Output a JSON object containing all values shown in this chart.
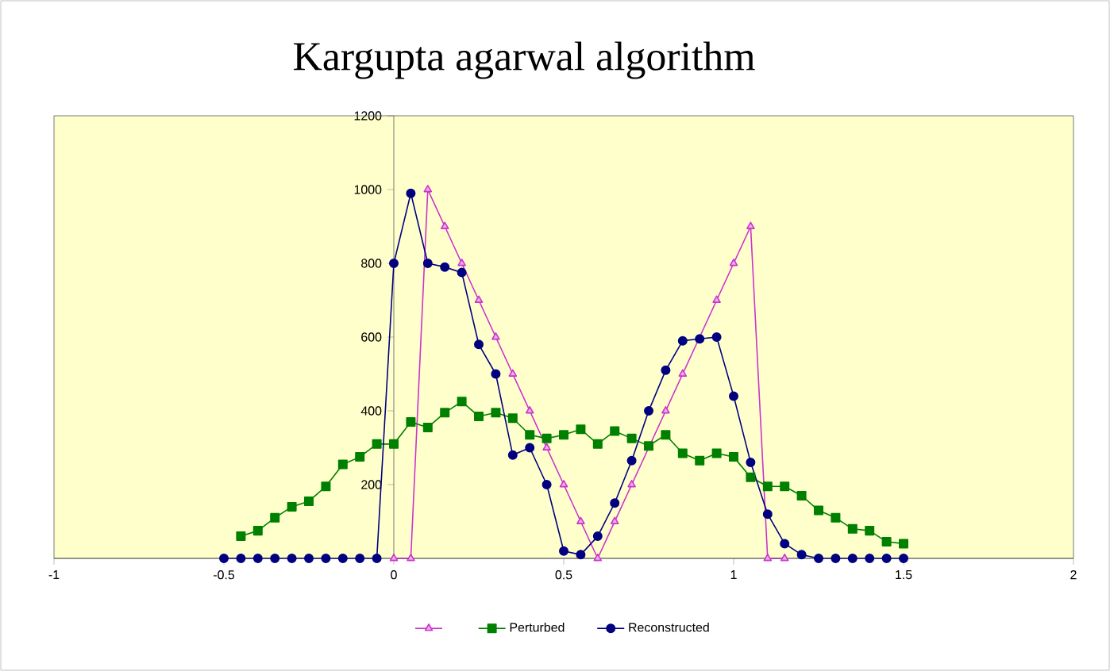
{
  "chart_data": {
    "type": "line",
    "title": "Kargupta agarwal algorithm",
    "xlim": [
      -1,
      2
    ],
    "xticks": [
      -1,
      -0.5,
      0,
      0.5,
      1,
      1.5,
      2
    ],
    "ylim": [
      0,
      1200
    ],
    "yticks": [
      {
        "value": 0,
        "label": null
      },
      200,
      400,
      600,
      800,
      1000,
      1200
    ],
    "grid": false,
    "legend": "bottom",
    "series": [
      {
        "color": "#cc33cc",
        "marker": "triangle",
        "x": [
          0,
          0.05,
          0.1,
          0.15,
          0.2,
          0.25,
          0.3,
          0.35,
          0.4,
          0.45,
          0.5,
          0.55,
          0.6,
          0.65,
          0.7,
          0.75,
          0.8,
          0.85,
          0.9,
          0.95,
          1.0,
          1.05,
          1.1,
          1.15
        ],
        "values": [
          0,
          0,
          1000,
          900,
          800,
          700,
          600,
          500,
          400,
          300,
          200,
          100,
          0,
          100,
          200,
          300,
          400,
          500,
          null,
          700,
          800,
          900,
          0,
          0
        ]
      },
      {
        "name": "Perturbed",
        "color": "#008000",
        "marker": "square",
        "x": [
          -0.45,
          -0.4,
          -0.35,
          -0.3,
          -0.25,
          -0.2,
          -0.15,
          -0.1,
          -0.05,
          0,
          0.05,
          0.1,
          0.15,
          0.2,
          0.25,
          0.3,
          0.35,
          0.4,
          0.45,
          0.5,
          0.55,
          0.6,
          0.65,
          0.7,
          0.75,
          0.8,
          0.85,
          0.9,
          0.95,
          1.0,
          1.05,
          1.1,
          1.15,
          1.2,
          1.25,
          1.3,
          1.35,
          1.4,
          1.45,
          1.5
        ],
        "values": [
          60,
          75,
          110,
          140,
          155,
          195,
          255,
          275,
          310,
          310,
          370,
          355,
          395,
          425,
          385,
          395,
          380,
          335,
          325,
          335,
          350,
          310,
          345,
          325,
          305,
          335,
          285,
          265,
          285,
          275,
          220,
          195,
          195,
          170,
          130,
          110,
          80,
          75,
          45,
          40
        ]
      },
      {
        "name": "Reconstructed",
        "color": "#000080",
        "marker": "circle",
        "x": [
          -0.5,
          -0.45,
          -0.4,
          -0.35,
          -0.3,
          -0.25,
          -0.2,
          -0.15,
          -0.1,
          -0.05,
          0,
          0.05,
          0.1,
          0.15,
          0.2,
          0.25,
          0.3,
          0.35,
          0.4,
          0.45,
          0.5,
          0.55,
          0.6,
          0.65,
          0.7,
          0.75,
          0.8,
          0.85,
          0.9,
          0.95,
          1.0,
          1.05,
          1.1,
          1.15,
          1.2,
          1.25,
          1.3,
          1.35,
          1.4,
          1.45,
          1.5
        ],
        "values": [
          0,
          0,
          0,
          0,
          0,
          0,
          0,
          0,
          0,
          0,
          800,
          990,
          800,
          790,
          775,
          580,
          500,
          280,
          300,
          200,
          20,
          10,
          60,
          150,
          265,
          400,
          510,
          590,
          595,
          600,
          440,
          260,
          120,
          40,
          10,
          0,
          0,
          0,
          0,
          0,
          0
        ]
      }
    ]
  }
}
